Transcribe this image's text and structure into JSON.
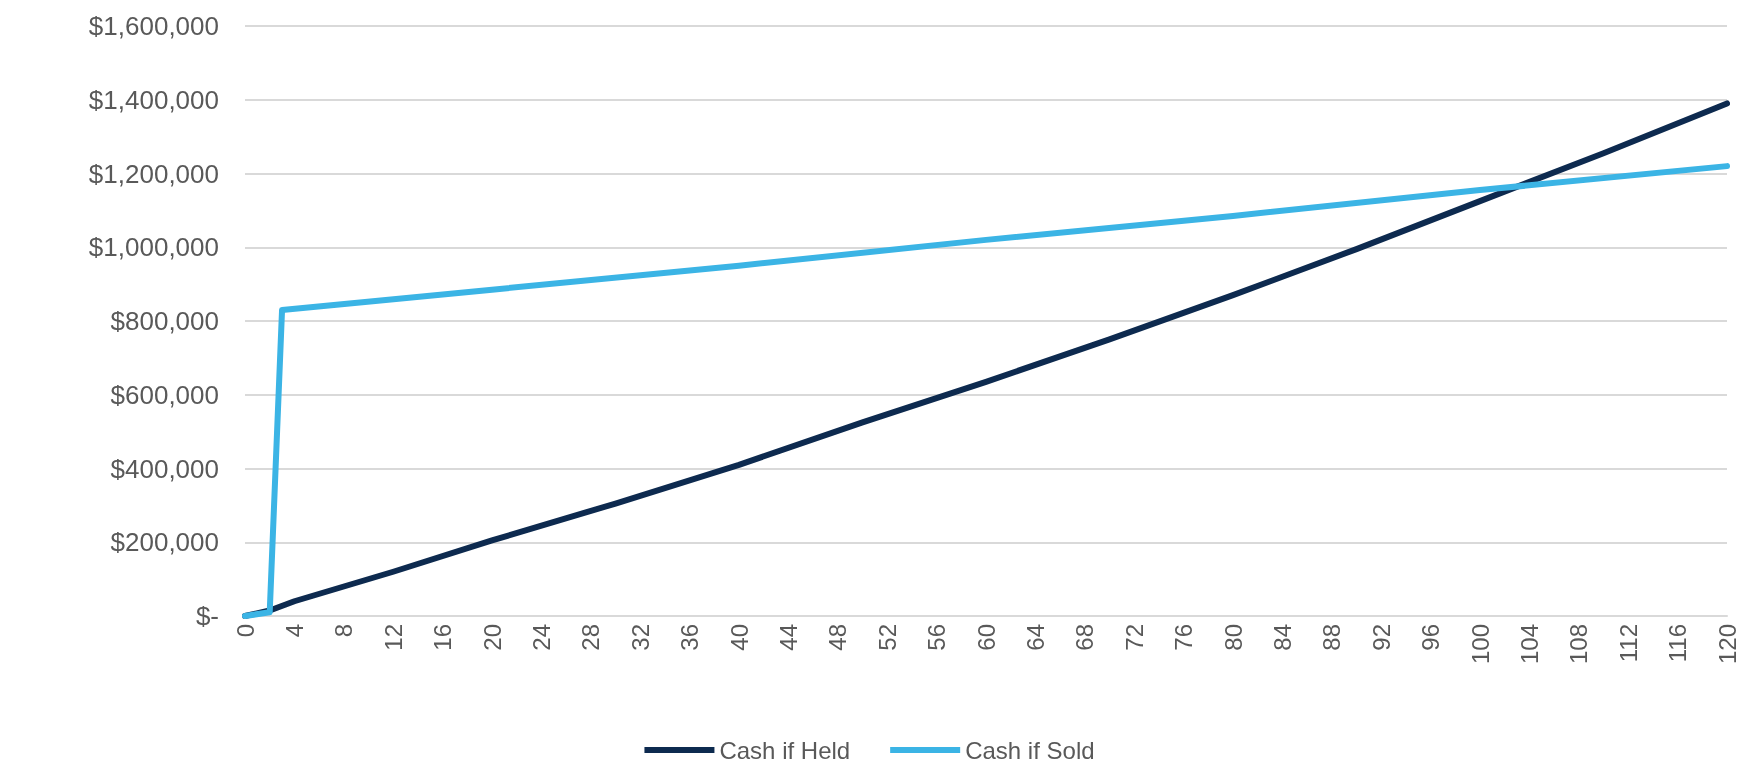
{
  "chart_data": {
    "type": "line",
    "xlim": [
      0,
      120
    ],
    "xticks": [
      0,
      4,
      8,
      12,
      16,
      20,
      24,
      28,
      32,
      36,
      40,
      44,
      48,
      52,
      56,
      60,
      64,
      68,
      72,
      76,
      80,
      84,
      88,
      92,
      96,
      100,
      104,
      108,
      112,
      116,
      120
    ],
    "ylim": [
      0,
      1600000
    ],
    "yticks": [
      {
        "value": 0,
        "label": "$-"
      },
      {
        "value": 200000,
        "label": "$200,000"
      },
      {
        "value": 400000,
        "label": "$400,000"
      },
      {
        "value": 600000,
        "label": "$600,000"
      },
      {
        "value": 800000,
        "label": "$800,000"
      },
      {
        "value": 1000000,
        "label": "$1,000,000"
      },
      {
        "value": 1200000,
        "label": "$1,200,000"
      },
      {
        "value": 1400000,
        "label": "$1,400,000"
      },
      {
        "value": 1600000,
        "label": "$1,600,000"
      }
    ],
    "grid": "y",
    "legend": "bottom",
    "marker": "none",
    "line_style": "solid",
    "series": [
      {
        "name": "Cash if Held",
        "color": "#0d2a4f",
        "x": [
          0,
          2,
          4,
          12,
          20,
          30,
          40,
          50,
          60,
          70,
          80,
          90,
          100,
          110,
          120
        ],
        "values": [
          0,
          15000,
          40000,
          120000,
          205000,
          305000,
          410000,
          525000,
          635000,
          750000,
          870000,
          995000,
          1125000,
          1255000,
          1390000
        ]
      },
      {
        "name": "Cash if Sold",
        "color": "#3bb4e5",
        "x": [
          0,
          2,
          3,
          20,
          40,
          60,
          80,
          100,
          120
        ],
        "values": [
          0,
          10000,
          830000,
          885000,
          950000,
          1020000,
          1085000,
          1155000,
          1220000
        ]
      }
    ]
  }
}
